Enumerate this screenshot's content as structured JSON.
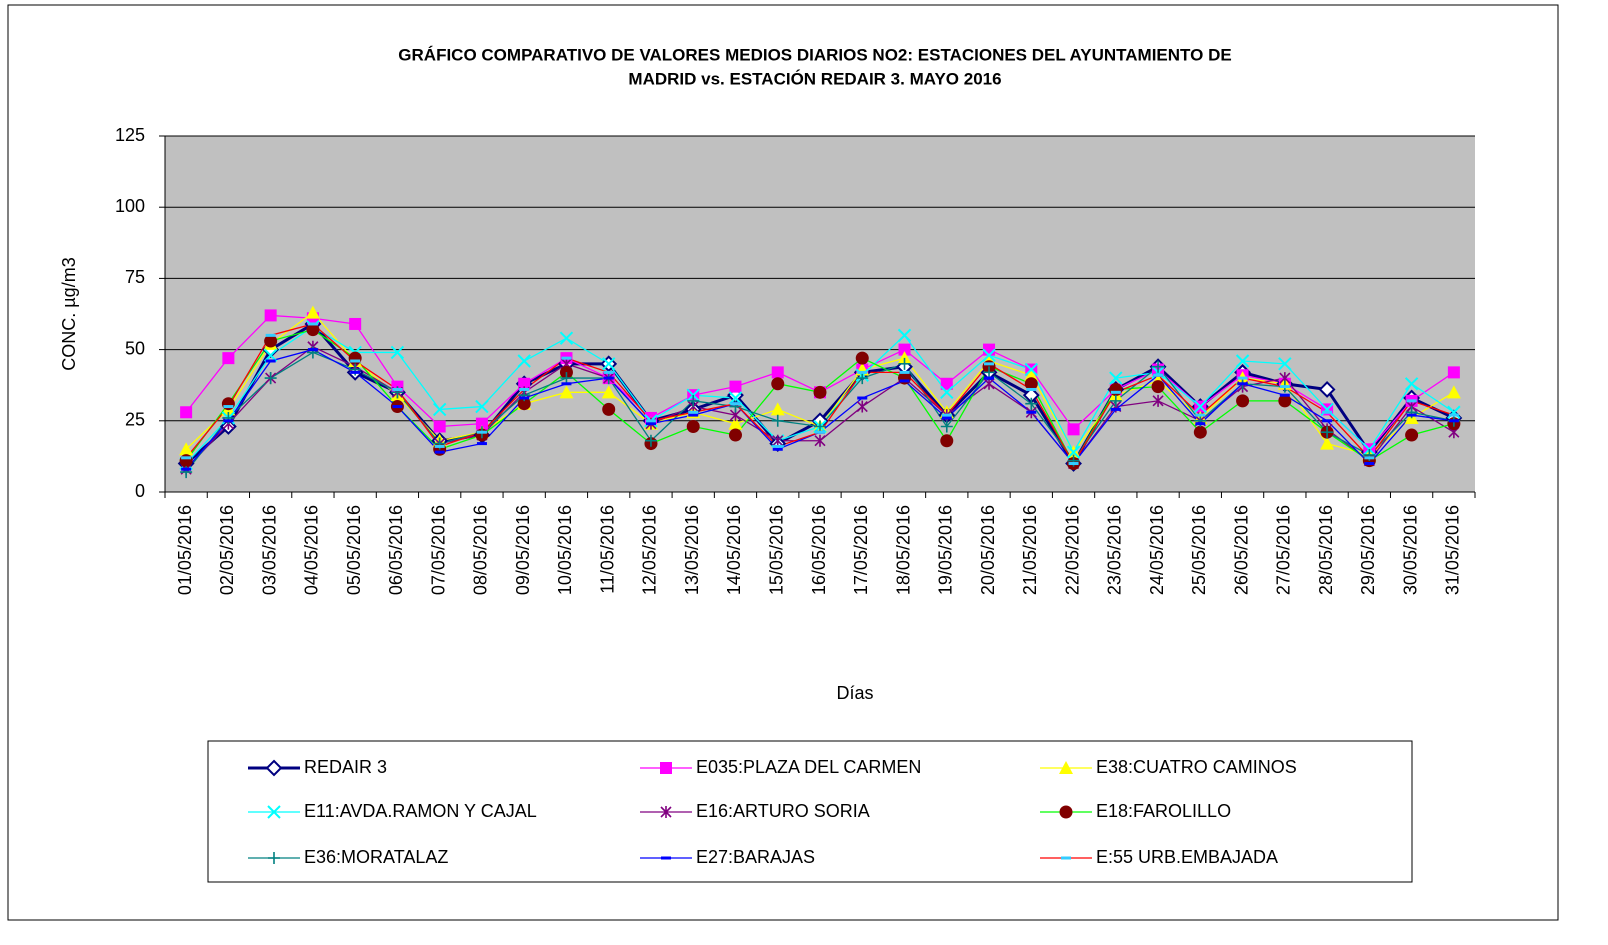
{
  "chart_data": {
    "type": "line",
    "title": [
      "GRÁFICO COMPARATIVO DE VALORES MEDIOS DIARIOS NO2: ESTACIONES DEL AYUNTAMIENTO DE",
      "MADRID vs.  ESTACIÓN REDAIR 3. MAYO 2016"
    ],
    "x_label": "Días",
    "y_label": "CONC.  µg/m3",
    "categories": [
      "01/05/2016",
      "02/05/2016",
      "03/05/2016",
      "04/05/2016",
      "05/05/2016",
      "06/05/2016",
      "07/05/2016",
      "08/05/2016",
      "09/05/2016",
      "10/05/2016",
      "11/05/2016",
      "12/05/2016",
      "13/05/2016",
      "14/05/2016",
      "15/05/2016",
      "16/05/2016",
      "17/05/2016",
      "18/05/2016",
      "19/05/2016",
      "20/05/2016",
      "21/05/2016",
      "22/05/2016",
      "23/05/2016",
      "24/05/2016",
      "25/05/2016",
      "26/05/2016",
      "27/05/2016",
      "28/05/2016",
      "29/05/2016",
      "30/05/2016",
      "31/05/2016"
    ],
    "ylim": [
      0,
      125
    ],
    "yticks": [
      0,
      25,
      50,
      75,
      100,
      125
    ],
    "grid": true,
    "plot_background": "#c0c0c0",
    "series": [
      {
        "name": "REDAIR 3",
        "color": "#000080",
        "marker": "diamond",
        "marker_color": "#000080",
        "line_width": 3,
        "values": [
          10,
          23,
          50,
          59,
          42,
          35,
          18,
          20,
          38,
          45,
          45,
          25,
          29,
          34,
          17,
          25,
          42,
          44,
          27,
          42,
          34,
          10,
          36,
          44,
          30,
          42,
          38,
          36,
          14,
          33,
          26
        ]
      },
      {
        "name": "E035:PLAZA DEL CARMEN",
        "color": "#ff00ff",
        "marker": "square",
        "marker_color": "#ff00ff",
        "line_width": 1.3,
        "values": [
          28,
          47,
          62,
          61,
          59,
          37,
          23,
          24,
          38,
          47,
          40,
          26,
          34,
          37,
          42,
          35,
          43,
          50,
          38,
          50,
          43,
          22,
          36,
          43,
          30,
          41,
          38,
          29,
          15,
          32,
          42
        ]
      },
      {
        "name": "E38:CUATRO CAMINOS",
        "color": "#ffff00",
        "marker": "triangle",
        "marker_color": "#ffff00",
        "line_width": 1.3,
        "values": [
          15,
          29,
          52,
          63,
          46,
          34,
          18,
          21,
          31,
          35,
          35,
          24,
          28,
          24,
          29,
          23,
          43,
          47,
          28,
          46,
          41,
          14,
          34,
          39,
          26,
          40,
          38,
          17,
          13,
          26,
          35
        ]
      },
      {
        "name": "E11:AVDA.RAMON  Y CAJAL",
        "color": "#00ffff",
        "marker": "x",
        "marker_color": "#00ffff",
        "line_width": 1.3,
        "values": [
          10,
          26,
          48,
          58,
          49,
          49,
          29,
          30,
          46,
          54,
          45,
          25,
          34,
          33,
          18,
          23,
          41,
          55,
          35,
          48,
          43,
          14,
          40,
          42,
          30,
          46,
          45,
          29,
          15,
          38,
          28
        ]
      },
      {
        "name": "E16:ARTURO SORIA",
        "color": "#800080",
        "marker": "star",
        "marker_color": "#800080",
        "line_width": 1.3,
        "values": [
          8,
          24,
          40,
          51,
          44,
          35,
          17,
          20,
          35,
          45,
          40,
          24,
          30,
          27,
          18,
          18,
          30,
          40,
          27,
          38,
          28,
          10,
          30,
          32,
          25,
          37,
          40,
          22,
          11,
          30,
          21
        ]
      },
      {
        "name": "E18:FAROLILLO",
        "color": "#00ff00",
        "marker": "circle",
        "marker_color": "#800000",
        "line_width": 1.3,
        "values": [
          11,
          31,
          53,
          57,
          47,
          30,
          15,
          20,
          31,
          42,
          29,
          17,
          23,
          20,
          38,
          35,
          47,
          40,
          18,
          44,
          38,
          10,
          36,
          37,
          21,
          32,
          32,
          21,
          11,
          20,
          24
        ]
      },
      {
        "name": "E36:MORATALAZ",
        "color": "#008080",
        "marker": "plus",
        "marker_color": "#008080",
        "line_width": 1.3,
        "values": [
          7,
          26,
          40,
          49,
          43,
          35,
          17,
          21,
          34,
          40,
          40,
          18,
          32,
          30,
          25,
          23,
          40,
          45,
          23,
          42,
          31,
          11,
          32,
          44,
          25,
          38,
          37,
          21,
          13,
          28,
          25
        ]
      },
      {
        "name": "E27:BARAJAS",
        "color": "#0000ff",
        "marker": "dash",
        "marker_color": "#0000ff",
        "line_width": 1.3,
        "values": [
          8,
          25,
          46,
          50,
          42,
          30,
          14,
          17,
          33,
          38,
          40,
          24,
          27,
          31,
          15,
          21,
          33,
          39,
          26,
          40,
          28,
          10,
          29,
          41,
          24,
          38,
          34,
          25,
          10,
          27,
          25
        ]
      },
      {
        "name": "E:55 URB.EMBAJADA",
        "color": "#ff0000",
        "marker": "dash",
        "marker_color": "#33ccff",
        "line_width": 1.3,
        "values": [
          12,
          30,
          55,
          59,
          46,
          36,
          16,
          21,
          36,
          47,
          42,
          25,
          28,
          31,
          16,
          21,
          42,
          42,
          27,
          45,
          36,
          10,
          35,
          41,
          27,
          40,
          37,
          28,
          12,
          32,
          27
        ]
      }
    ]
  }
}
